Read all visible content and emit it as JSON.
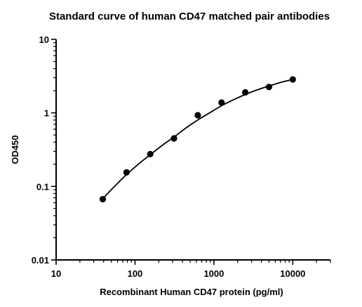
{
  "chart_data": {
    "type": "scatter",
    "title": "Standard curve of human CD47 matched pair antibodies",
    "xlabel": "Recombinant Human CD47 protein (pg/ml)",
    "ylabel": "OD450",
    "x_scale": "log",
    "y_scale": "log",
    "xlim": [
      10,
      30000
    ],
    "ylim": [
      0.01,
      10
    ],
    "x_ticks": [
      10,
      100,
      1000,
      10000
    ],
    "x_tick_labels": [
      "10",
      "100",
      "1000",
      "10000"
    ],
    "y_ticks": [
      0.01,
      0.1,
      1,
      10
    ],
    "y_tick_labels": [
      "0.01",
      "0.1",
      "1",
      "10"
    ],
    "grid": false,
    "legend": "none",
    "series": [
      {
        "x": [
          39,
          78,
          156,
          312,
          625,
          1250,
          2500,
          5000,
          10000
        ],
        "y": [
          0.067,
          0.155,
          0.275,
          0.45,
          0.93,
          1.38,
          1.9,
          2.25,
          2.85
        ]
      }
    ],
    "fit_curve": {
      "x": [
        39,
        55,
        78,
        110,
        156,
        220,
        312,
        440,
        625,
        880,
        1250,
        1760,
        2500,
        3530,
        5000,
        7070,
        10000
      ],
      "y": [
        0.068,
        0.1,
        0.145,
        0.2,
        0.27,
        0.36,
        0.47,
        0.62,
        0.8,
        1.0,
        1.25,
        1.5,
        1.78,
        2.05,
        2.32,
        2.6,
        2.85
      ]
    },
    "colors": {
      "marks": "#000000"
    }
  }
}
